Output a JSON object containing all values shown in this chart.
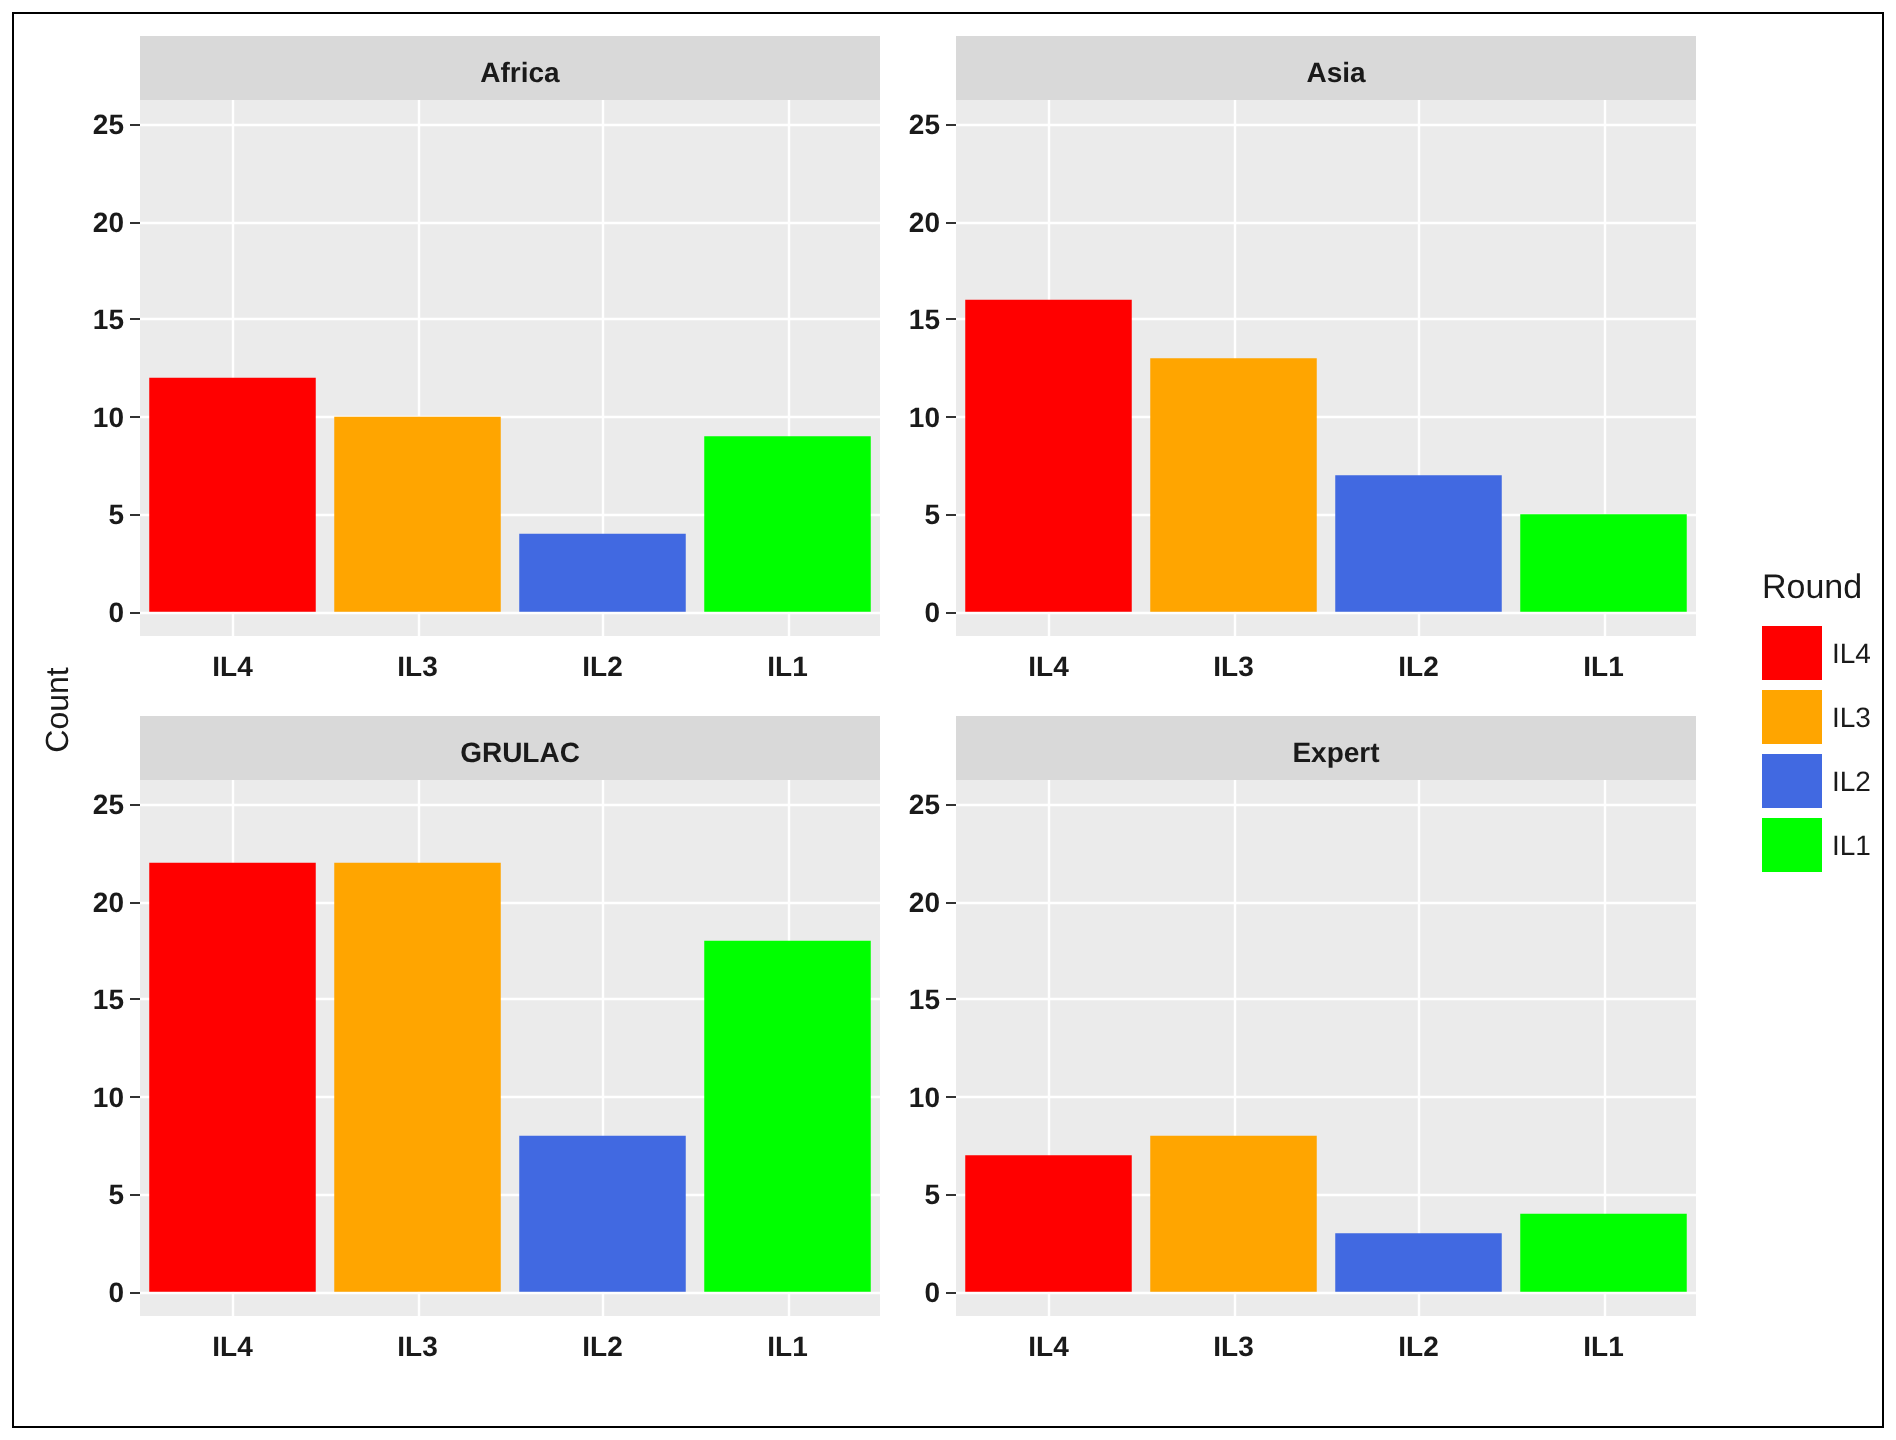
{
  "chart_data": [
    {
      "type": "bar",
      "title": "Africa",
      "ylabel": "Count",
      "categories": [
        "IL4",
        "IL3",
        "IL2",
        "IL1"
      ],
      "series": [
        {
          "color": "#ff0000",
          "values": [
            12,
            null,
            null,
            null
          ]
        },
        {
          "color": "#ffa500",
          "values": [
            null,
            10,
            null,
            null
          ]
        },
        {
          "color": "#4169e1",
          "values": [
            null,
            null,
            4,
            null
          ]
        },
        {
          "color": "#00ff00",
          "values": [
            null,
            null,
            null,
            9
          ]
        }
      ],
      "ylim": [
        -1.25,
        26.25
      ],
      "yticks": [
        0,
        5,
        10,
        15,
        20,
        25
      ],
      "grid": true
    },
    {
      "type": "bar",
      "title": "Asia",
      "legend": "right",
      "legend_title": "Round",
      "categories": [
        "IL4",
        "IL3",
        "IL2",
        "IL1"
      ],
      "series": [
        {
          "name": "IL4",
          "color": "#ff0000",
          "values": [
            16,
            null,
            null,
            null
          ]
        },
        {
          "name": "IL3",
          "color": "#ffa500",
          "values": [
            null,
            13,
            null,
            null
          ]
        },
        {
          "name": "IL2",
          "color": "#4169e1",
          "values": [
            null,
            null,
            7,
            null
          ]
        },
        {
          "name": "IL1",
          "color": "#00ff00",
          "values": [
            null,
            null,
            null,
            5
          ]
        }
      ],
      "ylim": [
        -1.25,
        26.25
      ],
      "yticks": [
        0,
        5,
        10,
        15,
        20,
        25
      ],
      "grid": true
    },
    {
      "type": "bar",
      "title": "GRULAC",
      "categories": [
        "IL4",
        "IL3",
        "IL2",
        "IL1"
      ],
      "series": [
        {
          "color": "#ff0000",
          "values": [
            22,
            null,
            null,
            null
          ]
        },
        {
          "color": "#ffa500",
          "values": [
            null,
            22,
            null,
            null
          ]
        },
        {
          "color": "#4169e1",
          "values": [
            null,
            null,
            8,
            null
          ]
        },
        {
          "color": "#00ff00",
          "values": [
            null,
            null,
            null,
            18
          ]
        }
      ],
      "ylim": [
        -1.25,
        26.25
      ],
      "yticks": [
        0,
        5,
        10,
        15,
        20,
        25
      ],
      "grid": true
    },
    {
      "type": "bar",
      "title": "Expert",
      "categories": [
        "IL4",
        "IL3",
        "IL2",
        "IL1"
      ],
      "series": [
        {
          "color": "#ff0000",
          "values": [
            7,
            null,
            null,
            null
          ]
        },
        {
          "color": "#ffa500",
          "values": [
            null,
            8,
            null,
            null
          ]
        },
        {
          "color": "#4169e1",
          "values": [
            null,
            null,
            3,
            null
          ]
        },
        {
          "color": "#00ff00",
          "values": [
            null,
            null,
            null,
            4
          ]
        }
      ],
      "ylim": [
        -1.25,
        26.25
      ],
      "yticks": [
        0,
        5,
        10,
        15,
        20,
        25
      ],
      "grid": true
    }
  ]
}
